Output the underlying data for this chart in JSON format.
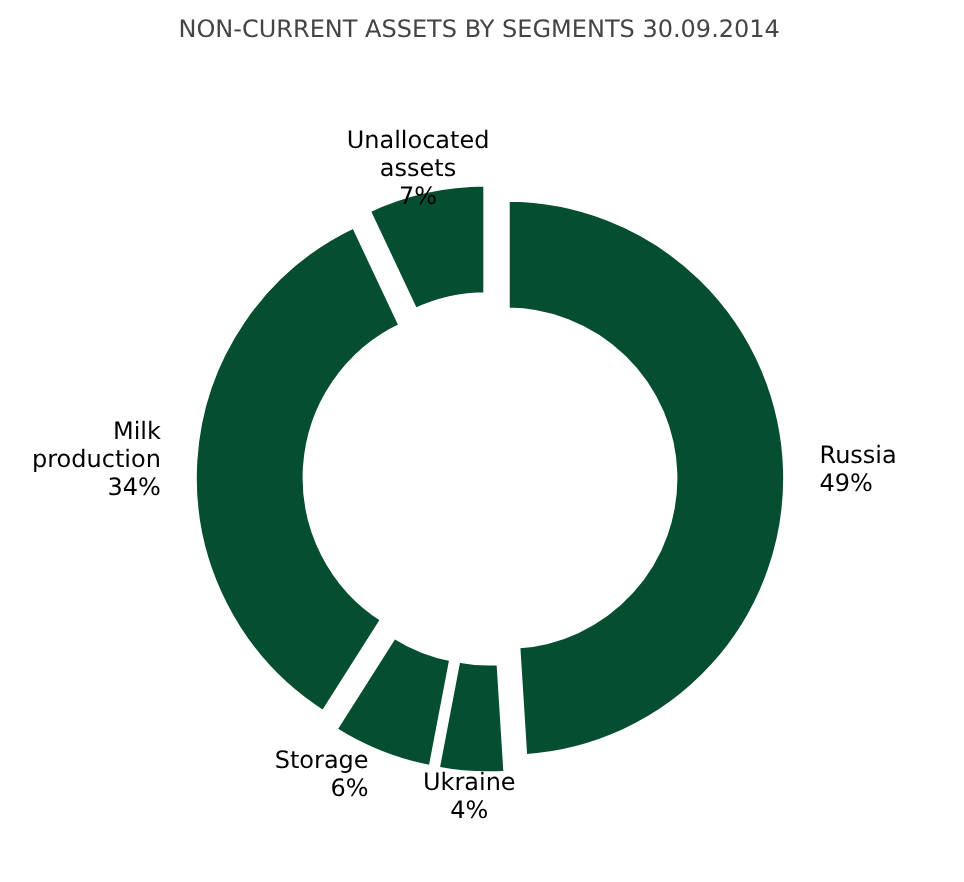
{
  "chart_data": {
    "type": "donut",
    "title": "NON-CURRENT ASSETS BY SEGMENTS  30.09.2014",
    "categories": [
      "Russia",
      "Ukraine",
      "Storage",
      "Milk production",
      "Unallocated assets"
    ],
    "values": [
      49,
      4,
      6,
      34,
      7
    ],
    "colors": [
      "#054f30",
      "#054f30",
      "#054f30",
      "#054f30",
      "#054f30"
    ],
    "value_labels": [
      "49%",
      "4%",
      "6%",
      "34%",
      "7%"
    ]
  }
}
